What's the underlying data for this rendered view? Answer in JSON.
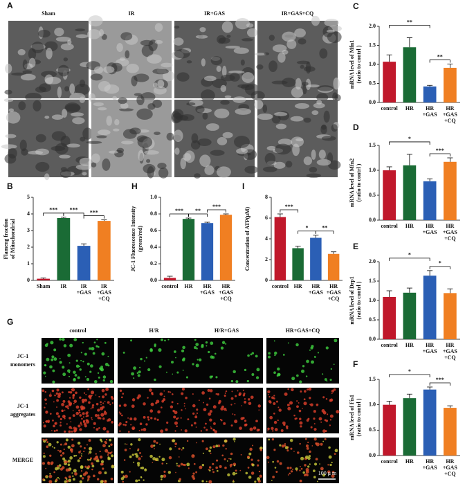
{
  "figure_a": {
    "panel": "A",
    "columns": [
      "Sham",
      "IR",
      "IR+GAS",
      "IR+GAS+CQ"
    ]
  },
  "figure_g": {
    "panel": "G",
    "columns": [
      "control",
      "H/R",
      "H/R+GAS",
      "HR+GAS+CQ"
    ],
    "rows": [
      [
        "JC-1",
        "monomers"
      ],
      [
        "JC-1",
        "aggregates"
      ],
      [
        "MERGE"
      ]
    ],
    "scale_bar": "100 μ m"
  },
  "chart_data": [
    {
      "type": "bar",
      "panel": "B",
      "ylabel": [
        "Flameng fraction",
        "of Mitochondrial"
      ],
      "categories": [
        [
          "Sham"
        ],
        [
          "IR"
        ],
        [
          "IR",
          "+GAS"
        ],
        [
          "IR",
          "+GAS",
          "+CQ"
        ]
      ],
      "values": [
        0.1,
        3.75,
        2.08,
        3.58
      ],
      "errors": [
        0.05,
        0.05,
        0.12,
        0.06
      ],
      "colors": [
        "#c0182b",
        "#1a6b35",
        "#2b5fb5",
        "#f07f22"
      ],
      "ylim": [
        0,
        5
      ],
      "yticks": [
        0,
        1,
        2,
        3,
        4,
        5
      ],
      "significance": [
        {
          "between": [
            0,
            1
          ],
          "label": "***"
        },
        {
          "between": [
            1,
            2
          ],
          "label": "***"
        },
        {
          "between": [
            2,
            3
          ],
          "label": "***"
        }
      ]
    },
    {
      "type": "bar",
      "panel": "H",
      "ylabel": [
        "JC-1 Fluorescence Intensity",
        "(green/red)"
      ],
      "categories": [
        [
          "control"
        ],
        [
          "HR"
        ],
        [
          "HR",
          "+GAS"
        ],
        [
          "HR",
          "+GAS",
          "+CQ"
        ]
      ],
      "values": [
        0.03,
        0.74,
        0.69,
        0.79
      ],
      "errors": [
        0.02,
        0.01,
        0.01,
        0.01
      ],
      "colors": [
        "#c0182b",
        "#1a6b35",
        "#2b5fb5",
        "#f07f22"
      ],
      "ylim": [
        0,
        1.0
      ],
      "yticks": [
        {
          "value": 0,
          "label": "0.0"
        },
        0.2,
        0.4,
        0.6,
        0.8,
        {
          "value": 1,
          "label": "1.0"
        }
      ],
      "significance": [
        {
          "between": [
            0,
            1
          ],
          "label": "***"
        },
        {
          "between": [
            1,
            2
          ],
          "label": "**"
        },
        {
          "between": [
            2,
            3
          ],
          "label": "***"
        }
      ]
    },
    {
      "type": "bar",
      "panel": "I",
      "ylabel": [
        "Concentration of ATP(μM)"
      ],
      "categories": [
        [
          "control"
        ],
        [
          "HR"
        ],
        [
          "HR",
          "+GAS"
        ],
        [
          "HR",
          "+GAS",
          "+CQ"
        ]
      ],
      "values": [
        6.1,
        3.1,
        4.1,
        2.55
      ],
      "errors": [
        0.3,
        0.2,
        0.25,
        0.2
      ],
      "colors": [
        "#c0182b",
        "#1a6b35",
        "#2b5fb5",
        "#f07f22"
      ],
      "ylim": [
        0,
        8
      ],
      "yticks": [
        0,
        2,
        4,
        6,
        8
      ],
      "significance": [
        {
          "between": [
            0,
            1
          ],
          "label": "***"
        },
        {
          "between": [
            1,
            2
          ],
          "label": "*"
        },
        {
          "between": [
            2,
            3
          ],
          "label": "**"
        }
      ]
    },
    {
      "type": "bar",
      "panel": "C",
      "ylabel": [
        "mRNA level of Mfn1",
        "(ratio to contrl )"
      ],
      "categories": [
        [
          "control"
        ],
        [
          "HR"
        ],
        [
          "HR",
          "+GAS"
        ],
        [
          "HR",
          "+GAS",
          "+CQ"
        ]
      ],
      "values": [
        1.07,
        1.45,
        0.42,
        0.91
      ],
      "errors": [
        0.18,
        0.25,
        0.03,
        0.1
      ],
      "colors": [
        "#c0182b",
        "#1a6b35",
        "#2b5fb5",
        "#f07f22"
      ],
      "ylim": [
        0,
        2.0
      ],
      "yticks": [
        {
          "value": 0,
          "label": "0.0"
        },
        0.5,
        {
          "value": 1,
          "label": "1.0"
        },
        1.5,
        {
          "value": 2,
          "label": "2.0"
        }
      ],
      "significance": [
        {
          "between": [
            0,
            2
          ],
          "label": "**"
        },
        {
          "between": [
            2,
            3
          ],
          "label": "**"
        }
      ]
    },
    {
      "type": "bar",
      "panel": "D",
      "ylabel": [
        "mRNA level of Mfn2",
        "(ratio to contrl )"
      ],
      "categories": [
        [
          "control"
        ],
        [
          "HR"
        ],
        [
          "HR",
          "+GAS"
        ],
        [
          "HR",
          "+GAS",
          "+CQ"
        ]
      ],
      "values": [
        1.0,
        1.1,
        0.78,
        1.17
      ],
      "errors": [
        0.07,
        0.22,
        0.05,
        0.08
      ],
      "colors": [
        "#c0182b",
        "#1a6b35",
        "#2b5fb5",
        "#f07f22"
      ],
      "ylim": [
        0,
        1.5
      ],
      "yticks": [
        {
          "value": 0,
          "label": "0.0"
        },
        0.5,
        {
          "value": 1,
          "label": "1.0"
        },
        1.5
      ],
      "significance": [
        {
          "between": [
            0,
            2
          ],
          "label": "*"
        },
        {
          "between": [
            2,
            3
          ],
          "label": "***"
        }
      ]
    },
    {
      "type": "bar",
      "panel": "E",
      "ylabel": [
        "mRNA level of Drp1",
        "(ratio to contrl )"
      ],
      "categories": [
        [
          "control"
        ],
        [
          "HR"
        ],
        [
          "HR",
          "+GAS"
        ],
        [
          "HR",
          "+GAS",
          "+CQ"
        ]
      ],
      "values": [
        1.09,
        1.2,
        1.64,
        1.19
      ],
      "errors": [
        0.16,
        0.12,
        0.13,
        0.11
      ],
      "colors": [
        "#c0182b",
        "#1a6b35",
        "#2b5fb5",
        "#f07f22"
      ],
      "ylim": [
        0,
        2.0
      ],
      "yticks": [
        {
          "value": 0,
          "label": "0.0"
        },
        0.5,
        {
          "value": 1,
          "label": "1.0"
        },
        1.5,
        {
          "value": 2,
          "label": "2.0"
        }
      ],
      "significance": [
        {
          "between": [
            0,
            2
          ],
          "label": "*"
        },
        {
          "between": [
            2,
            3
          ],
          "label": "*"
        }
      ]
    },
    {
      "type": "bar",
      "panel": "F",
      "ylabel": [
        "mRNA level of Fis1",
        "(ratio to contrl )"
      ],
      "categories": [
        [
          "control"
        ],
        [
          "HR"
        ],
        [
          "HR",
          "+GAS"
        ],
        [
          "HR",
          "+GAS",
          "+CQ"
        ]
      ],
      "values": [
        1.0,
        1.13,
        1.3,
        0.94
      ],
      "errors": [
        0.07,
        0.08,
        0.05,
        0.04
      ],
      "colors": [
        "#c0182b",
        "#1a6b35",
        "#2b5fb5",
        "#f07f22"
      ],
      "ylim": [
        0,
        1.5
      ],
      "yticks": [
        {
          "value": 0,
          "label": "0.0"
        },
        0.5,
        {
          "value": 1,
          "label": "1.0"
        },
        1.5
      ],
      "significance": [
        {
          "between": [
            0,
            2
          ],
          "label": "*"
        },
        {
          "between": [
            2,
            3
          ],
          "label": "***"
        }
      ]
    }
  ]
}
